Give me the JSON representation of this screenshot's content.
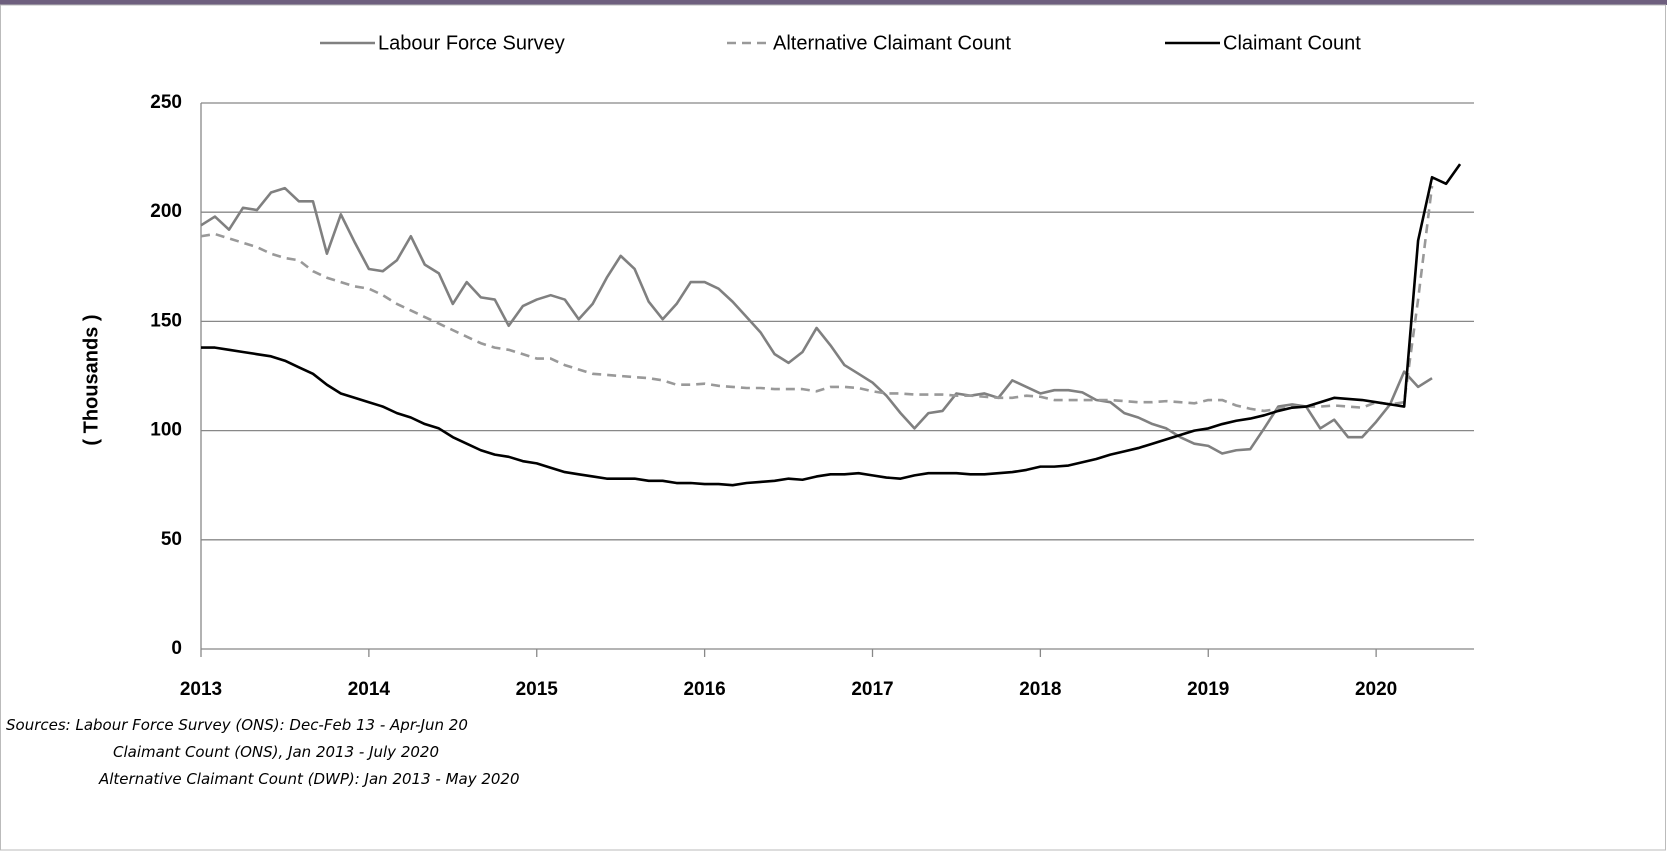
{
  "chart_data": {
    "type": "line",
    "y_label": "( Thousands )",
    "x": [
      2013,
      2013.083,
      2013.167,
      2013.25,
      2013.333,
      2013.417,
      2013.5,
      2013.583,
      2013.667,
      2013.75,
      2013.833,
      2013.917,
      2014,
      2014.083,
      2014.167,
      2014.25,
      2014.333,
      2014.417,
      2014.5,
      2014.583,
      2014.667,
      2014.75,
      2014.833,
      2014.917,
      2015,
      2015.083,
      2015.167,
      2015.25,
      2015.333,
      2015.417,
      2015.5,
      2015.583,
      2015.667,
      2015.75,
      2015.833,
      2015.917,
      2016,
      2016.083,
      2016.167,
      2016.25,
      2016.333,
      2016.417,
      2016.5,
      2016.583,
      2016.667,
      2016.75,
      2016.833,
      2016.917,
      2017,
      2017.083,
      2017.167,
      2017.25,
      2017.333,
      2017.417,
      2017.5,
      2017.583,
      2017.667,
      2017.75,
      2017.833,
      2017.917,
      2018,
      2018.083,
      2018.167,
      2018.25,
      2018.333,
      2018.417,
      2018.5,
      2018.583,
      2018.667,
      2018.75,
      2018.833,
      2018.917,
      2019,
      2019.083,
      2019.167,
      2019.25,
      2019.333,
      2019.417,
      2019.5,
      2019.583,
      2019.667,
      2019.75,
      2019.833,
      2019.917,
      2020,
      2020.083,
      2020.167,
      2020.25,
      2020.333,
      2020.417,
      2020.5
    ],
    "series": [
      {
        "name": "Labour Force Survey",
        "color": "#808080",
        "dashed": false,
        "values": [
          194,
          198,
          192,
          202,
          201,
          209,
          211,
          205,
          205,
          181,
          199,
          186,
          174,
          173,
          178,
          189,
          176,
          172,
          158,
          168,
          161,
          160,
          148,
          157,
          160,
          162,
          160,
          151,
          158,
          170,
          180,
          174,
          159,
          151,
          158,
          168,
          168,
          165,
          159,
          152,
          145,
          135,
          131,
          136,
          147,
          139,
          130,
          126,
          122,
          116,
          108,
          101,
          108,
          109,
          117,
          116,
          117,
          115,
          123,
          120,
          117,
          118.5,
          118.5,
          117.5,
          114,
          113,
          108,
          106,
          103,
          101,
          97,
          94,
          93,
          89.5,
          91,
          91.5,
          101,
          111,
          112,
          111,
          101,
          105,
          97,
          97,
          104,
          112,
          127,
          120,
          124,
          null,
          null
        ]
      },
      {
        "name": "Alternative Claimant Count",
        "color": "#999999",
        "dashed": true,
        "values": [
          189,
          190,
          188,
          186,
          184,
          181,
          179,
          178,
          173,
          170,
          168,
          166,
          165,
          162,
          158,
          155,
          152,
          149,
          146,
          143,
          140,
          138,
          137,
          135,
          133,
          133,
          130,
          128,
          126,
          125.5,
          125,
          124.5,
          124,
          123,
          121,
          121,
          121.5,
          120.5,
          120,
          119.5,
          119.5,
          119,
          119,
          119,
          118,
          120,
          120,
          119.5,
          118,
          117,
          117,
          116.5,
          116.5,
          116.5,
          116,
          116,
          115.5,
          115,
          115,
          116,
          115.5,
          114,
          114,
          114,
          114,
          114,
          113.5,
          113,
          113,
          113.5,
          113,
          112.5,
          114,
          114,
          111.5,
          110,
          109,
          110,
          111,
          111,
          111,
          111.5,
          111,
          110.5,
          113,
          112,
          113,
          160,
          212,
          null,
          null
        ]
      },
      {
        "name": "Claimant Count",
        "color": "#000000",
        "dashed": false,
        "values": [
          138,
          138,
          137,
          136,
          135,
          134,
          132,
          129,
          126,
          121,
          117,
          115,
          113,
          111,
          108,
          106,
          103,
          101,
          97,
          94,
          91,
          89,
          88,
          86,
          85,
          83,
          81,
          80,
          79,
          78,
          78,
          78,
          77,
          77,
          76,
          76,
          75.5,
          75.5,
          75,
          76,
          76.5,
          77,
          78,
          77.5,
          79,
          80,
          80,
          80.5,
          79.5,
          78.5,
          78,
          79.5,
          80.5,
          80.5,
          80.5,
          80,
          80,
          80.5,
          81,
          82,
          83.5,
          83.5,
          84,
          85.5,
          87,
          89,
          90.5,
          92,
          94,
          96,
          98,
          100,
          101,
          103,
          104.5,
          105.5,
          107,
          109,
          110.5,
          111,
          113,
          115,
          114.5,
          114,
          113,
          112,
          111,
          187,
          216,
          213,
          222
        ]
      }
    ],
    "xlim": [
      2013,
      2020.583
    ],
    "xticks": [
      2013,
      2014,
      2015,
      2016,
      2017,
      2018,
      2019,
      2020
    ],
    "ylim": [
      0,
      250
    ],
    "yticks": [
      0,
      50,
      100,
      150,
      200,
      250
    ],
    "grid": true,
    "legend": "top",
    "notes": [
      "Sources: Labour Force Survey (ONS): Dec-Feb 13 - Apr-Jun 20",
      "Claimant Count (ONS), Jan 2013 - July 2020",
      "Alternative Claimant Count (DWP): Jan 2013 - May 2020"
    ]
  }
}
